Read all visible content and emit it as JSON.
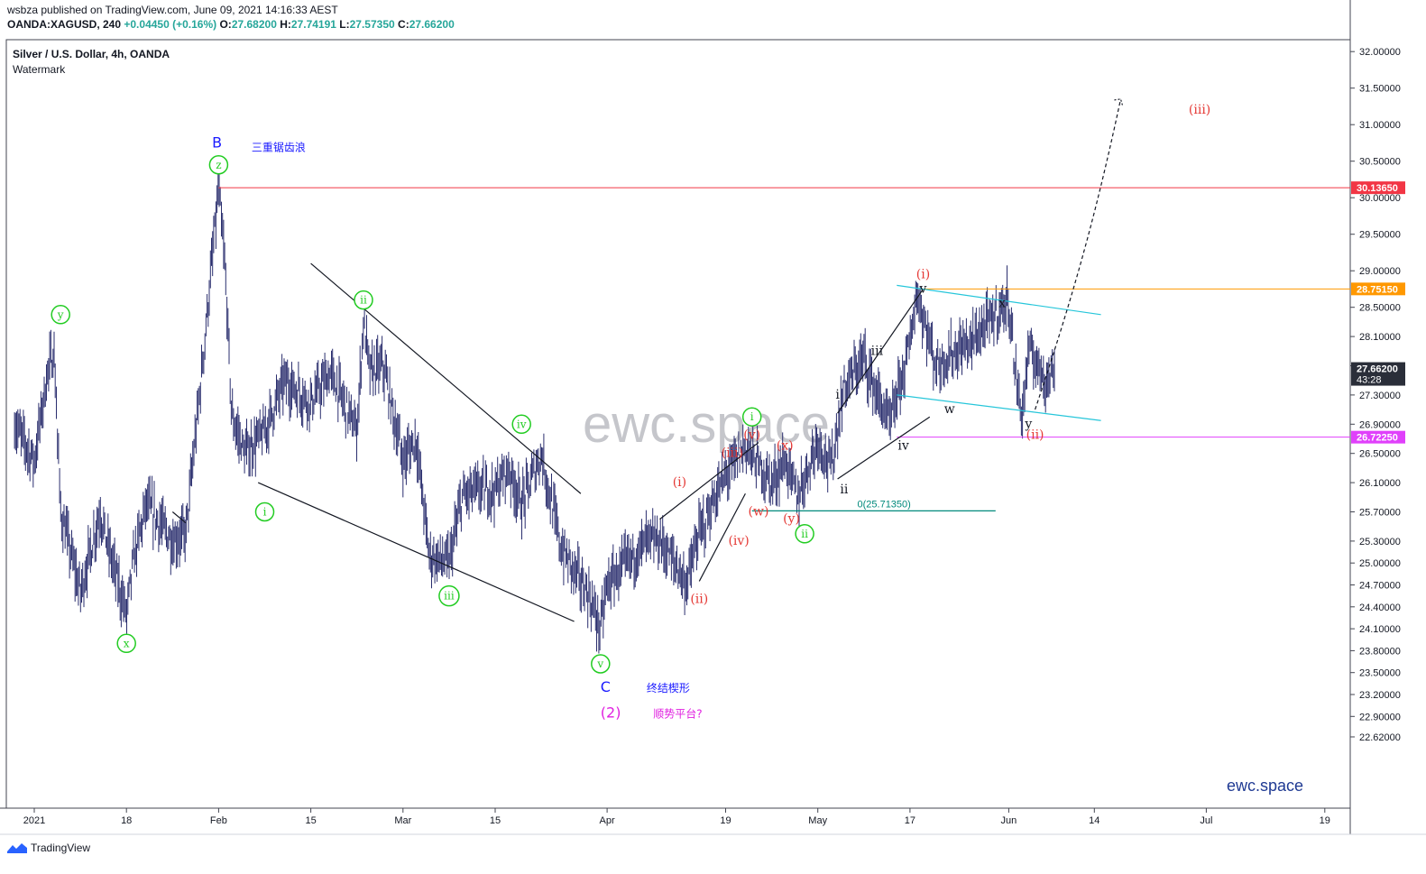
{
  "header": {
    "publisher_line": "wsbza published on TradingView.com, June 09, 2021 14:16:33 AEST",
    "symbol": "OANDA:XAGUSD, 240",
    "change": "+0.04450 (+0.16%)",
    "o_label": "O:",
    "o": "27.68200",
    "h_label": "H:",
    "h": "27.74191",
    "l_label": "L:",
    "l": "27.57350",
    "c_label": "C:",
    "c": "27.66200"
  },
  "chart_title": "Silver / U.S. Dollar, 4h, OANDA",
  "chart_subtitle": "Watermark",
  "watermark_center": "ewc.space",
  "watermark_corner": "ewc.space",
  "footer": {
    "brand": "TradingView",
    "logo_icon": "tradingview-logo-icon"
  },
  "colors": {
    "up": "#26a69a",
    "bar": "#2a2e6e",
    "resistance": "#f23645",
    "orange": "#ff9800",
    "magenta": "#e040fb",
    "cyan": "#26c6da",
    "green": "#22cc22",
    "red": "#e53935",
    "blue": "#1a1aff"
  },
  "chart_data": {
    "type": "line",
    "ylim": [
      22.4,
      32.2
    ],
    "y_ticks": [
      "32.00000",
      "31.50000",
      "31.00000",
      "30.50000",
      "30.00000",
      "29.50000",
      "29.00000",
      "28.50000",
      "28.10000",
      "27.70000",
      "27.30000",
      "26.90000",
      "26.50000",
      "26.10000",
      "25.70000",
      "25.30000",
      "25.00000",
      "24.70000",
      "24.40000",
      "24.10000",
      "23.80000",
      "23.50000",
      "23.20000",
      "22.90000",
      "22.62000"
    ],
    "x_ticks": [
      "2021",
      "18",
      "Feb",
      "15",
      "Mar",
      "15",
      "Apr",
      "19",
      "May",
      "17",
      "Jun",
      "14",
      "Jul",
      "19"
    ],
    "x_tick_dates": [
      "2021-01-04",
      "2021-01-18",
      "2021-02-01",
      "2021-02-15",
      "2021-03-01",
      "2021-03-15",
      "2021-04-01",
      "2021-04-19",
      "2021-05-03",
      "2021-05-17",
      "2021-06-01",
      "2021-06-14",
      "2021-07-01",
      "2021-07-19"
    ],
    "price_path": {
      "dates": [
        "2021-01-01",
        "2021-01-04",
        "2021-01-06",
        "2021-01-07",
        "2021-01-08",
        "2021-01-11",
        "2021-01-14",
        "2021-01-15",
        "2021-01-18",
        "2021-01-19",
        "2021-01-21",
        "2021-01-25",
        "2021-01-27",
        "2021-01-29",
        "2021-02-01",
        "2021-02-02",
        "2021-02-03",
        "2021-02-05",
        "2021-02-08",
        "2021-02-11",
        "2021-02-15",
        "2021-02-18",
        "2021-02-22",
        "2021-02-23",
        "2021-02-24",
        "2021-02-26",
        "2021-03-01",
        "2021-03-03",
        "2021-03-05",
        "2021-03-08",
        "2021-03-10",
        "2021-03-12",
        "2021-03-15",
        "2021-03-17",
        "2021-03-19",
        "2021-03-22",
        "2021-03-25",
        "2021-03-29",
        "2021-03-31",
        "2021-04-01",
        "2021-04-05",
        "2021-04-07",
        "2021-04-09",
        "2021-04-12",
        "2021-04-13",
        "2021-04-15",
        "2021-04-19",
        "2021-04-22",
        "2021-04-26",
        "2021-04-28",
        "2021-04-30",
        "2021-05-03",
        "2021-05-05",
        "2021-05-07",
        "2021-05-10",
        "2021-05-12",
        "2021-05-14",
        "2021-05-17",
        "2021-05-18",
        "2021-05-21",
        "2021-05-24",
        "2021-05-26",
        "2021-05-28",
        "2021-06-01",
        "2021-06-02",
        "2021-06-03",
        "2021-06-04",
        "2021-06-07",
        "2021-06-08"
      ],
      "values": [
        26.9,
        26.4,
        27.6,
        27.9,
        25.7,
        24.6,
        25.7,
        25.3,
        24.3,
        25.0,
        25.8,
        25.3,
        25.4,
        27.2,
        30.1,
        29.0,
        27.0,
        26.5,
        26.8,
        27.5,
        27.2,
        27.6,
        26.8,
        28.3,
        27.6,
        27.7,
        26.4,
        26.7,
        25.1,
        25.0,
        25.9,
        26.0,
        26.0,
        26.3,
        25.8,
        26.5,
        25.2,
        24.6,
        24.1,
        24.7,
        25.1,
        25.3,
        25.3,
        24.9,
        24.7,
        25.4,
        26.2,
        26.6,
        26.1,
        26.4,
        25.9,
        26.7,
        26.3,
        27.4,
        27.8,
        27.3,
        26.9,
        28.0,
        28.7,
        27.7,
        27.9,
        28.0,
        28.2,
        28.6,
        27.6,
        27.0,
        27.9,
        27.5,
        27.7
      ]
    },
    "horizontal_levels": [
      {
        "price": 30.1365,
        "label": "30.13650",
        "color": "#f23645"
      },
      {
        "price": 28.7515,
        "label": "28.75150",
        "color": "#ff9800"
      },
      {
        "price": 27.662,
        "label": "27.66200",
        "countdown": "43:28",
        "color": "#2a2e39"
      },
      {
        "price": 26.7225,
        "label": "26.72250",
        "color": "#e040fb"
      }
    ],
    "fib_level": {
      "text": "0(25.71350)",
      "price": 25.7135,
      "color": "#00897b"
    },
    "wave_labels": [
      {
        "text": "y",
        "date": "2021-01-08",
        "price": 28.4,
        "style": "green-circle"
      },
      {
        "text": "x",
        "date": "2021-01-18",
        "price": 23.9,
        "style": "green-circle"
      },
      {
        "text": "z",
        "date": "2021-02-01",
        "price": 30.45,
        "style": "green-circle"
      },
      {
        "text": "i",
        "date": "2021-02-08",
        "price": 25.7,
        "style": "green-circle"
      },
      {
        "text": "ii",
        "date": "2021-02-23",
        "price": 28.6,
        "style": "green-circle"
      },
      {
        "text": "iii",
        "date": "2021-03-08",
        "price": 24.55,
        "style": "green-circle"
      },
      {
        "text": "iv",
        "date": "2021-03-19",
        "price": 26.9,
        "style": "green-circle"
      },
      {
        "text": "v",
        "date": "2021-03-31",
        "price": 23.62,
        "style": "green-circle"
      },
      {
        "text": "i",
        "date": "2021-04-23",
        "price": 27.0,
        "style": "green-circle"
      },
      {
        "text": "ii",
        "date": "2021-05-01",
        "price": 25.4,
        "style": "green-circle"
      },
      {
        "text": "(i)",
        "date": "2021-04-12",
        "price": 26.1,
        "style": "red"
      },
      {
        "text": "(ii)",
        "date": "2021-04-15",
        "price": 24.5,
        "style": "red"
      },
      {
        "text": "(iii)",
        "date": "2021-04-20",
        "price": 26.5,
        "style": "red"
      },
      {
        "text": "(iv)",
        "date": "2021-04-21",
        "price": 25.3,
        "style": "red"
      },
      {
        "text": "(v)",
        "date": "2021-04-23",
        "price": 26.75,
        "style": "red"
      },
      {
        "text": "(w)",
        "date": "2021-04-24",
        "price": 25.7,
        "style": "red"
      },
      {
        "text": "(x)",
        "date": "2021-04-28",
        "price": 26.6,
        "style": "red"
      },
      {
        "text": "(y)",
        "date": "2021-04-29",
        "price": 25.6,
        "style": "red"
      },
      {
        "text": "(i)",
        "date": "2021-05-19",
        "price": 28.95,
        "style": "red"
      },
      {
        "text": "(ii)",
        "date": "2021-06-05",
        "price": 26.75,
        "style": "red"
      },
      {
        "text": "(iii)",
        "date": "2021-06-30",
        "price": 31.2,
        "style": "red"
      },
      {
        "text": "i",
        "date": "2021-05-06",
        "price": 27.3,
        "style": "dark"
      },
      {
        "text": "ii",
        "date": "2021-05-07",
        "price": 26.0,
        "style": "dark"
      },
      {
        "text": "iii",
        "date": "2021-05-12",
        "price": 27.9,
        "style": "dark"
      },
      {
        "text": "iv",
        "date": "2021-05-16",
        "price": 26.6,
        "style": "dark"
      },
      {
        "text": "v",
        "date": "2021-05-19",
        "price": 28.75,
        "style": "dark"
      },
      {
        "text": "w",
        "date": "2021-05-23",
        "price": 27.1,
        "style": "dark"
      },
      {
        "text": "x",
        "date": "2021-05-31",
        "price": 28.55,
        "style": "dark"
      },
      {
        "text": "y",
        "date": "2021-06-04",
        "price": 26.9,
        "style": "dark"
      }
    ],
    "annotations": [
      {
        "text": "B",
        "date": "2021-01-31",
        "price": 30.75,
        "color": "#1a1aff",
        "size": 16
      },
      {
        "text": "三重锯齿浪",
        "date": "2021-02-06",
        "price": 30.7,
        "color": "#1a1aff",
        "size": 12
      },
      {
        "text": "C",
        "date": "2021-03-31",
        "price": 23.3,
        "color": "#1a1aff",
        "size": 16
      },
      {
        "text": "终结楔形",
        "date": "2021-04-07",
        "price": 23.3,
        "color": "#1a1aff",
        "size": 12
      },
      {
        "text": "(2)",
        "date": "2021-03-31",
        "price": 22.95,
        "color": "#e020e0",
        "size": 16
      },
      {
        "text": "顺势平台?",
        "date": "2021-04-08",
        "price": 22.95,
        "color": "#e020e0",
        "size": 12
      }
    ],
    "trendlines": [
      {
        "from": [
          "2021-02-15",
          29.1
        ],
        "to": [
          "2021-03-28",
          25.95
        ],
        "color": "#131722"
      },
      {
        "from": [
          "2021-02-07",
          26.1
        ],
        "to": [
          "2021-03-27",
          24.2
        ],
        "color": "#131722"
      },
      {
        "from": [
          "2021-01-25",
          25.7
        ],
        "to": [
          "2021-01-27",
          25.55
        ],
        "color": "#131722"
      },
      {
        "from": [
          "2021-04-09",
          25.6
        ],
        "to": [
          "2021-04-24",
          26.65
        ],
        "color": "#131722"
      },
      {
        "from": [
          "2021-04-15",
          24.75
        ],
        "to": [
          "2021-04-22",
          25.95
        ],
        "color": "#131722"
      },
      {
        "from": [
          "2021-05-06",
          27.05
        ],
        "to": [
          "2021-05-19",
          28.75
        ],
        "color": "#131722"
      },
      {
        "from": [
          "2021-05-06",
          26.15
        ],
        "to": [
          "2021-05-20",
          27.0
        ],
        "color": "#131722"
      },
      {
        "from": [
          "2021-05-15",
          28.8
        ],
        "to": [
          "2021-06-15",
          28.4
        ],
        "color": "#26c6da"
      },
      {
        "from": [
          "2021-05-15",
          27.3
        ],
        "to": [
          "2021-06-15",
          26.95
        ],
        "color": "#26c6da"
      },
      {
        "from": [
          "2021-04-23",
          25.7135
        ],
        "to": [
          "2021-05-30",
          25.7135
        ],
        "color": "#00897b"
      }
    ],
    "projection": {
      "from": [
        "2021-06-05",
        27.1
      ],
      "to": [
        "2021-06-18",
        31.35
      ],
      "color": "#131722",
      "style": "dashed"
    }
  }
}
